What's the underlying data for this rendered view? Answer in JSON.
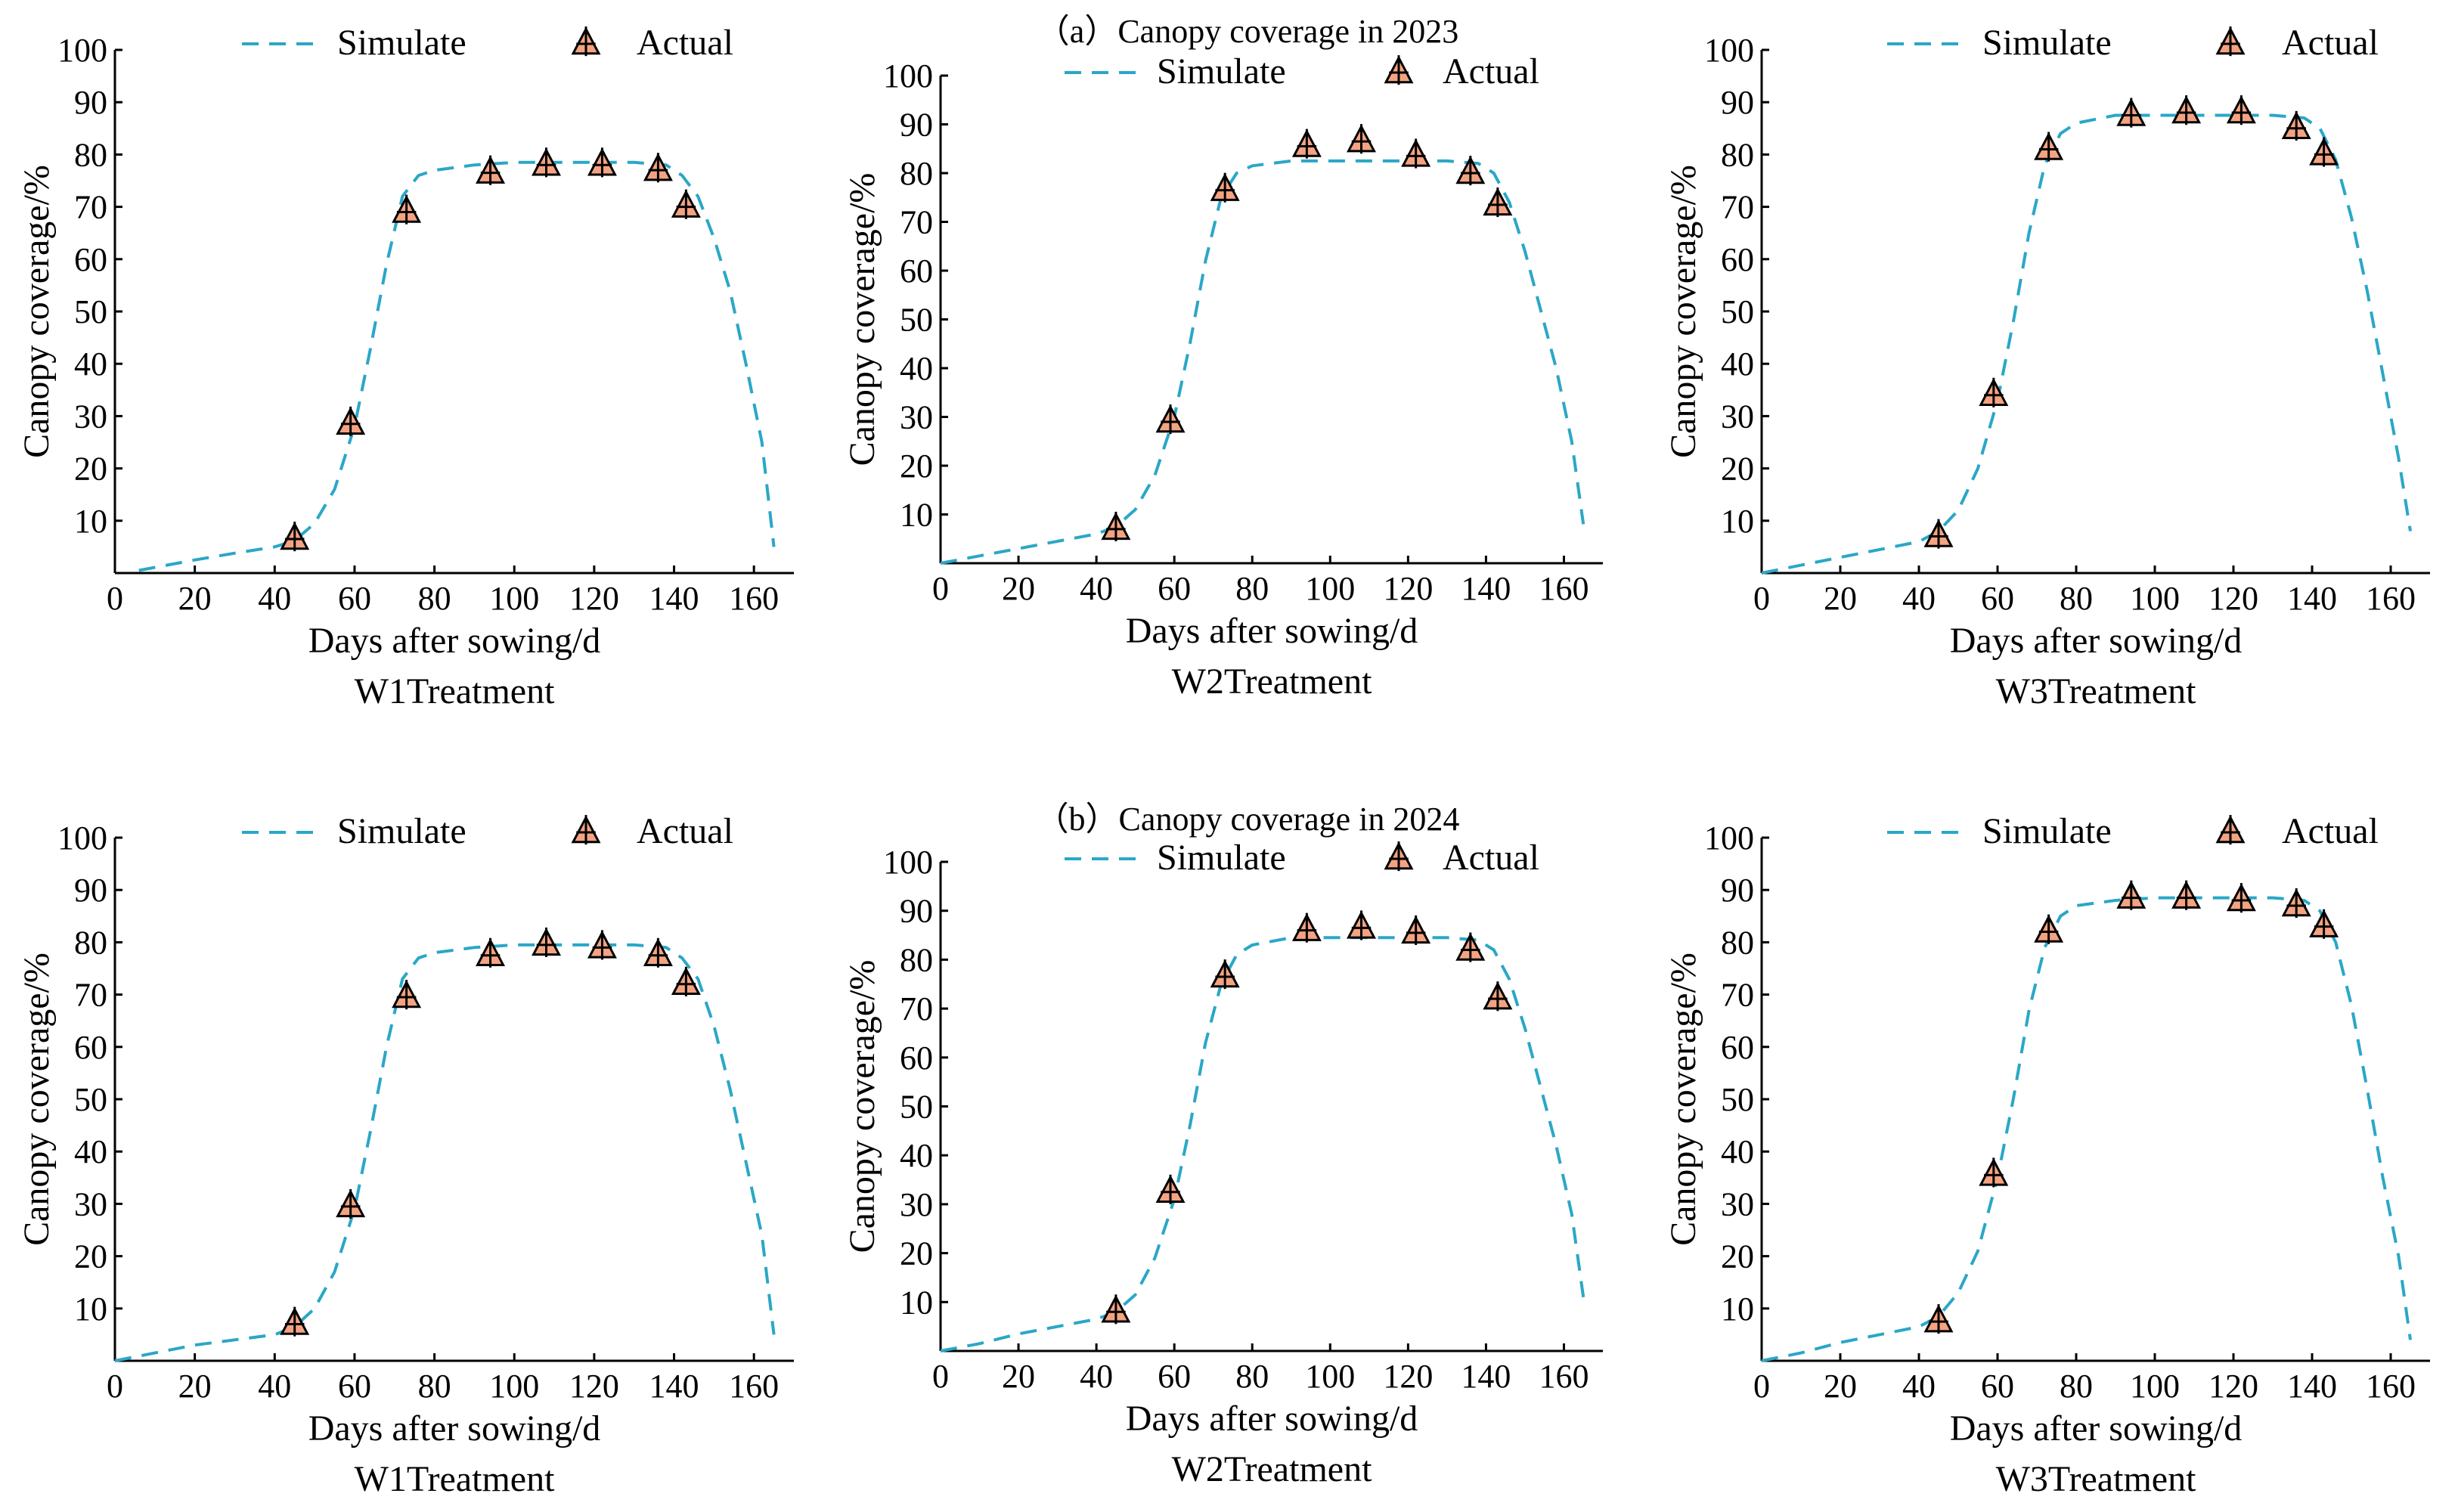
{
  "figure": {
    "group_titles": [
      "（a）Canopy coverage in 2023",
      "（b）Canopy coverage in 2024"
    ],
    "legend": {
      "simulate_label": "Simulate",
      "actual_label": "Actual"
    },
    "colors": {
      "simulate": "#2aa7c7",
      "actual_fill": "#f4a382",
      "actual_edge": "#000000",
      "axis": "#000000"
    }
  },
  "chart_data": [
    {
      "type": "line",
      "group": "（a）Canopy coverage in 2023",
      "xlabel": "Days after sowing/d",
      "ylabel": "Canopy coverage/%",
      "panel_label": "W1Treatment",
      "xlim": [
        0,
        170
      ],
      "ylim": [
        0,
        100
      ],
      "xticks": [
        0,
        20,
        40,
        60,
        80,
        100,
        120,
        140,
        160
      ],
      "yticks": [
        10,
        20,
        30,
        40,
        50,
        60,
        70,
        80,
        90,
        100
      ],
      "series": [
        {
          "name": "Simulate",
          "style": "dashed",
          "x": [
            6,
            20,
            30,
            40,
            45,
            50,
            55,
            60,
            64,
            68,
            72,
            76,
            80,
            90,
            100,
            110,
            120,
            130,
            138,
            142,
            146,
            150,
            154,
            158,
            162,
            165
          ],
          "y": [
            0.5,
            2.5,
            3.8,
            5.0,
            6.2,
            9.5,
            16.0,
            28.0,
            43.0,
            59.0,
            72.0,
            76.0,
            77.0,
            78.0,
            78.5,
            78.5,
            78.5,
            78.5,
            78.0,
            76.0,
            72.0,
            64.0,
            54.0,
            40.0,
            25.0,
            5.0
          ]
        },
        {
          "name": "Actual",
          "style": "markers",
          "x": [
            45,
            59,
            73,
            94,
            108,
            122,
            136,
            143
          ],
          "y": [
            6.5,
            28.5,
            69.0,
            76.5,
            78.0,
            78.0,
            77.0,
            70.0
          ]
        }
      ]
    },
    {
      "type": "line",
      "group": "（a）Canopy coverage in 2023",
      "xlabel": "Days after sowing/d",
      "ylabel": "Canopy coverage/%",
      "panel_label": "W2Treatment",
      "xlim": [
        0,
        170
      ],
      "ylim": [
        0,
        100
      ],
      "xticks": [
        0,
        20,
        40,
        60,
        80,
        100,
        120,
        140,
        160
      ],
      "yticks": [
        10,
        20,
        30,
        40,
        50,
        60,
        70,
        80,
        90,
        100
      ],
      "series": [
        {
          "name": "Simulate",
          "style": "dashed",
          "x": [
            0,
            10,
            20,
            30,
            40,
            45,
            50,
            55,
            60,
            64,
            68,
            72,
            76,
            80,
            90,
            100,
            110,
            120,
            130,
            138,
            142,
            146,
            150,
            154,
            158,
            162,
            165
          ],
          "y": [
            0,
            1.5,
            3.0,
            4.5,
            6.0,
            7.5,
            11.0,
            18.0,
            30.0,
            45.0,
            62.0,
            75.0,
            80.0,
            81.5,
            82.5,
            82.5,
            82.5,
            82.5,
            82.5,
            82.0,
            80.0,
            74.0,
            64.0,
            52.0,
            40.0,
            25.0,
            8.0
          ]
        },
        {
          "name": "Actual",
          "style": "markers",
          "x": [
            45,
            59,
            73,
            94,
            108,
            122,
            136,
            143
          ],
          "y": [
            7.0,
            29.0,
            76.5,
            85.5,
            86.5,
            83.5,
            80.0,
            73.5
          ]
        }
      ]
    },
    {
      "type": "line",
      "group": "（a）Canopy coverage in 2023",
      "xlabel": "Days after sowing/d",
      "ylabel": "Canopy coverage/%",
      "panel_label": "W3Treatment",
      "xlim": [
        0,
        170
      ],
      "ylim": [
        0,
        100
      ],
      "xticks": [
        0,
        20,
        40,
        60,
        80,
        100,
        120,
        140,
        160
      ],
      "yticks": [
        10,
        20,
        30,
        40,
        50,
        60,
        70,
        80,
        90,
        100
      ],
      "series": [
        {
          "name": "Simulate",
          "style": "dashed",
          "x": [
            0,
            10,
            20,
            30,
            40,
            45,
            50,
            55,
            60,
            64,
            68,
            72,
            76,
            80,
            90,
            100,
            110,
            120,
            130,
            138,
            142,
            146,
            150,
            154,
            158,
            162,
            165
          ],
          "y": [
            0,
            1.5,
            3.0,
            4.5,
            6.0,
            8.0,
            12.0,
            20.0,
            33.0,
            48.0,
            65.0,
            78.0,
            84.0,
            86.0,
            87.5,
            87.5,
            87.5,
            87.5,
            87.5,
            87.0,
            85.0,
            79.0,
            68.0,
            54.0,
            38.0,
            22.0,
            8.0
          ]
        },
        {
          "name": "Actual",
          "style": "markers",
          "x": [
            45,
            59,
            73,
            94,
            108,
            122,
            136,
            143
          ],
          "y": [
            7.0,
            34.0,
            81.0,
            87.5,
            88.0,
            88.0,
            85.0,
            80.0
          ]
        }
      ]
    },
    {
      "type": "line",
      "group": "（b）Canopy coverage in 2024",
      "xlabel": "Days after sowing/d",
      "ylabel": "Canopy coverage/%",
      "panel_label": "W1Treatment",
      "xlim": [
        0,
        170
      ],
      "ylim": [
        0,
        100
      ],
      "xticks": [
        0,
        20,
        40,
        60,
        80,
        100,
        120,
        140,
        160
      ],
      "yticks": [
        10,
        20,
        30,
        40,
        50,
        60,
        70,
        80,
        90,
        100
      ],
      "series": [
        {
          "name": "Simulate",
          "style": "dashed",
          "x": [
            0,
            10,
            20,
            30,
            40,
            45,
            50,
            55,
            60,
            64,
            68,
            72,
            76,
            80,
            90,
            100,
            110,
            120,
            130,
            138,
            142,
            146,
            150,
            154,
            158,
            162,
            165
          ],
          "y": [
            0,
            1.5,
            3.0,
            4.0,
            5.0,
            6.5,
            10.0,
            17.0,
            29.0,
            44.0,
            60.0,
            73.0,
            77.0,
            78.0,
            79.0,
            79.5,
            79.5,
            79.5,
            79.5,
            79.0,
            77.0,
            73.0,
            64.0,
            52.0,
            38.0,
            24.0,
            5.0
          ]
        },
        {
          "name": "Actual",
          "style": "markers",
          "x": [
            45,
            59,
            73,
            94,
            108,
            122,
            136,
            143
          ],
          "y": [
            7.0,
            29.5,
            69.5,
            77.5,
            79.5,
            79.0,
            77.5,
            72.0
          ]
        }
      ]
    },
    {
      "type": "line",
      "group": "（b）Canopy coverage in 2024",
      "xlabel": "Days after sowing/d",
      "ylabel": "Canopy coverage/%",
      "panel_label": "W2Treatment",
      "xlim": [
        0,
        170
      ],
      "ylim": [
        0,
        100
      ],
      "xticks": [
        0,
        20,
        40,
        60,
        80,
        100,
        120,
        140,
        160
      ],
      "yticks": [
        10,
        20,
        30,
        40,
        50,
        60,
        70,
        80,
        90,
        100
      ],
      "series": [
        {
          "name": "Simulate",
          "style": "dashed",
          "x": [
            0,
            10,
            20,
            30,
            40,
            45,
            50,
            55,
            60,
            64,
            68,
            72,
            76,
            80,
            90,
            100,
            110,
            120,
            130,
            138,
            142,
            146,
            150,
            154,
            158,
            162,
            165
          ],
          "y": [
            0,
            1.5,
            3.5,
            5.0,
            6.5,
            8.0,
            11.5,
            19.0,
            31.0,
            46.0,
            63.0,
            75.0,
            81.0,
            83.0,
            84.5,
            84.5,
            84.5,
            84.5,
            84.5,
            84.0,
            82.0,
            76.0,
            66.0,
            54.0,
            42.0,
            28.0,
            11.0
          ]
        },
        {
          "name": "Actual",
          "style": "markers",
          "x": [
            45,
            59,
            73,
            94,
            108,
            122,
            136,
            143
          ],
          "y": [
            8.0,
            32.5,
            76.5,
            86.0,
            86.5,
            85.5,
            82.0,
            72.0
          ]
        }
      ]
    },
    {
      "type": "line",
      "group": "（b）Canopy coverage in 2024",
      "xlabel": "Days after sowing/d",
      "ylabel": "Canopy coverage/%",
      "panel_label": "W3Treatment",
      "xlim": [
        0,
        170
      ],
      "ylim": [
        0,
        100
      ],
      "xticks": [
        0,
        20,
        40,
        60,
        80,
        100,
        120,
        140,
        160
      ],
      "yticks": [
        10,
        20,
        30,
        40,
        50,
        60,
        70,
        80,
        90,
        100
      ],
      "series": [
        {
          "name": "Simulate",
          "style": "dashed",
          "x": [
            0,
            10,
            20,
            30,
            40,
            45,
            50,
            55,
            60,
            64,
            68,
            72,
            76,
            80,
            90,
            100,
            110,
            120,
            130,
            138,
            142,
            146,
            150,
            154,
            158,
            162,
            165
          ],
          "y": [
            0,
            1.5,
            3.5,
            5.0,
            6.5,
            8.5,
            13.0,
            21.0,
            35.0,
            50.0,
            67.0,
            79.0,
            85.0,
            87.0,
            88.0,
            88.5,
            88.5,
            88.5,
            88.5,
            88.0,
            86.0,
            80.0,
            68.0,
            52.0,
            35.0,
            20.0,
            4.0
          ]
        },
        {
          "name": "Actual",
          "style": "markers",
          "x": [
            45,
            59,
            73,
            94,
            108,
            122,
            136,
            143
          ],
          "y": [
            7.5,
            35.5,
            82.0,
            88.5,
            88.5,
            88.0,
            87.0,
            83.0
          ]
        }
      ]
    }
  ]
}
